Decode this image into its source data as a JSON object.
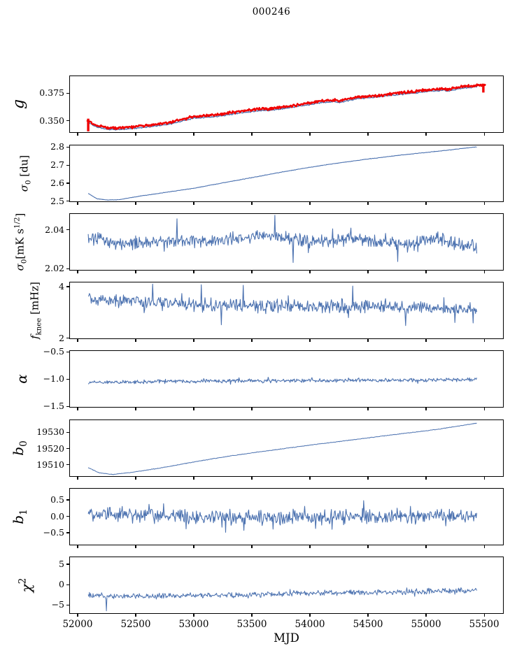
{
  "title": "000246",
  "colors": {
    "line_blue": "#4c72b0",
    "line_red": "#f00000",
    "axis": "#000000",
    "background": "#ffffff"
  },
  "chart_data": {
    "type": "line",
    "title": "000246",
    "xlabel": "MJD",
    "grid": false,
    "legend": null,
    "xlim": [
      51928,
      55668
    ],
    "x_ticks": [
      52000,
      52500,
      53000,
      53500,
      54000,
      54500,
      55000,
      55500
    ],
    "x_tick_labels": [
      "52000",
      "52500",
      "53000",
      "53500",
      "54000",
      "54500",
      "55000",
      "55500"
    ],
    "panels": [
      {
        "id": "g",
        "label": "g",
        "label_parts": [
          [
            "i",
            "g"
          ]
        ],
        "label_fontsize": 22,
        "label_cx": 27,
        "ylim": [
          0.339,
          0.391
        ],
        "yticks": [
          {
            "v": 0.375,
            "t": "0.375"
          },
          {
            "v": 0.35,
            "t": "0.350"
          }
        ],
        "series": [
          {
            "name": "g-model",
            "color": "blue",
            "lw": 1.3,
            "seed": 11,
            "n": 640,
            "noise": 0.0007,
            "spike_prob": 0,
            "spike_mult": 1,
            "x_start": 52085,
            "x_end": 55432,
            "trend": [
              [
                52085,
                0.3492
              ],
              [
                52150,
                0.3452
              ],
              [
                52250,
                0.3428
              ],
              [
                52360,
                0.3426
              ],
              [
                52480,
                0.3438
              ],
              [
                52620,
                0.3452
              ],
              [
                52800,
                0.3478
              ],
              [
                53000,
                0.3532
              ],
              [
                53150,
                0.354
              ],
              [
                53300,
                0.3562
              ],
              [
                53450,
                0.3585
              ],
              [
                53600,
                0.3602
              ],
              [
                53640,
                0.3598
              ],
              [
                53800,
                0.3622
              ],
              [
                53950,
                0.3645
              ],
              [
                54100,
                0.3672
              ],
              [
                54200,
                0.368
              ],
              [
                54250,
                0.3672
              ],
              [
                54400,
                0.3705
              ],
              [
                54550,
                0.3718
              ],
              [
                54700,
                0.3738
              ],
              [
                54850,
                0.3752
              ],
              [
                55000,
                0.3772
              ],
              [
                55150,
                0.3782
              ],
              [
                55180,
                0.3775
              ],
              [
                55300,
                0.38
              ],
              [
                55432,
                0.3815
              ]
            ]
          },
          {
            "name": "g-data",
            "color": "red",
            "lw": 2.4,
            "seed": 12,
            "n": 660,
            "noise": 0.0013,
            "spike_prob": 0.05,
            "spike_mult": 1.6,
            "x_start": 52075,
            "x_end": 55505,
            "trend_from": "g-model",
            "offset": 0.0015,
            "vspikes": [
              [
                52085,
                0.341,
                0.3525
              ],
              [
                55487,
                0.3762,
                0.3832
              ]
            ]
          }
        ]
      },
      {
        "id": "sigma0_du",
        "label": "σ0 [du]",
        "label_parts": [
          [
            "i",
            "σ"
          ],
          [
            "sub",
            "0"
          ],
          [
            "txt",
            " [du]"
          ]
        ],
        "label_fontsize": 15,
        "label_cx": 36,
        "ylim": [
          2.495,
          2.813
        ],
        "yticks": [
          {
            "v": 2.8,
            "t": "2.8"
          },
          {
            "v": 2.7,
            "t": "2.7"
          },
          {
            "v": 2.6,
            "t": "2.6"
          },
          {
            "v": 2.5,
            "t": "2.5"
          }
        ],
        "series": [
          {
            "name": "sigma0-du",
            "color": "blue",
            "lw": 1.1,
            "seed": 21,
            "n": 640,
            "noise": 0.0016,
            "spike_prob": 0.04,
            "spike_mult": 1.6,
            "x_start": 52085,
            "x_end": 55430,
            "trend": [
              [
                52085,
                2.547
              ],
              [
                52160,
                2.517
              ],
              [
                52260,
                2.51
              ],
              [
                52360,
                2.5125
              ],
              [
                52500,
                2.529
              ],
              [
                52750,
                2.5525
              ],
              [
                53000,
                2.576
              ],
              [
                53250,
                2.606
              ],
              [
                53500,
                2.635
              ],
              [
                53750,
                2.665
              ],
              [
                54000,
                2.6925
              ],
              [
                54250,
                2.7165
              ],
              [
                54500,
                2.738
              ],
              [
                54750,
                2.7575
              ],
              [
                55000,
                2.7745
              ],
              [
                55200,
                2.788
              ],
              [
                55430,
                2.8055
              ]
            ]
          }
        ]
      },
      {
        "id": "sigma0_mk",
        "label": "σ0 [mK s^1/2]",
        "label_parts": [
          [
            "i",
            "σ"
          ],
          [
            "sub",
            "0"
          ],
          [
            "txt",
            "[mK s"
          ],
          [
            "sup",
            "1/2"
          ],
          [
            "txt",
            "]"
          ]
        ],
        "label_fontsize": 15,
        "label_cx": 30,
        "ylim": [
          2.019,
          2.0485
        ],
        "yticks": [
          {
            "v": 2.04,
            "t": "2.04"
          },
          {
            "v": 2.02,
            "t": "2.02"
          }
        ],
        "series": [
          {
            "name": "sigma0-mk",
            "color": "blue",
            "lw": 1.1,
            "seed": 31,
            "n": 640,
            "noise": 0.0042,
            "spike_prob": 0.07,
            "spike_mult": 1.8,
            "x_start": 52085,
            "x_end": 55430,
            "trend": [
              [
                52085,
                2.036
              ],
              [
                52400,
                2.0335
              ],
              [
                52800,
                2.035
              ],
              [
                53200,
                2.0345
              ],
              [
                53680,
                2.0375
              ],
              [
                54000,
                2.034
              ],
              [
                54400,
                2.0355
              ],
              [
                54800,
                2.033
              ],
              [
                55100,
                2.0355
              ],
              [
                55430,
                2.031
              ]
            ],
            "spikes": [
              [
                52850,
                2.046
              ],
              [
                53690,
                2.0478
              ],
              [
                53850,
                2.0235
              ],
              [
                54750,
                2.024
              ]
            ]
          }
        ]
      },
      {
        "id": "f_knee",
        "label": "f_knee [mHz]",
        "label_parts": [
          [
            "i",
            "f"
          ],
          [
            "sub",
            "knee"
          ],
          [
            "txt",
            " [mHz]"
          ]
        ],
        "label_fontsize": 15,
        "label_cx": 51,
        "ylim": [
          1.97,
          4.19
        ],
        "yticks": [
          {
            "v": 4,
            "t": "4"
          },
          {
            "v": 2,
            "t": "2"
          }
        ],
        "series": [
          {
            "name": "f-knee",
            "color": "blue",
            "lw": 1.1,
            "seed": 41,
            "n": 640,
            "noise": 0.3,
            "spike_prob": 0.09,
            "spike_mult": 2.0,
            "x_start": 52085,
            "x_end": 55430,
            "trend": [
              [
                52085,
                3.55
              ],
              [
                52450,
                3.48
              ],
              [
                52700,
                3.38
              ],
              [
                53000,
                3.32
              ],
              [
                53500,
                3.28
              ],
              [
                54000,
                3.26
              ],
              [
                54500,
                3.27
              ],
              [
                55000,
                3.22
              ],
              [
                55430,
                3.12
              ]
            ],
            "spikes": [
              [
                52640,
                4.13
              ],
              [
                53060,
                4.1
              ],
              [
                53420,
                4.08
              ],
              [
                54360,
                4.05
              ],
              [
                53230,
                2.55
              ],
              [
                54820,
                2.52
              ],
              [
                55400,
                2.62
              ]
            ]
          }
        ]
      },
      {
        "id": "alpha",
        "label": "α",
        "label_parts": [
          [
            "i",
            "α"
          ]
        ],
        "label_fontsize": 20,
        "label_cx": 31,
        "ylim": [
          -1.52,
          -0.47
        ],
        "yticks": [
          {
            "v": -0.5,
            "t": "−0.5"
          },
          {
            "v": -1.0,
            "t": "−1.0"
          },
          {
            "v": -1.5,
            "t": "−1.5"
          }
        ],
        "series": [
          {
            "name": "alpha",
            "color": "blue",
            "lw": 1.1,
            "seed": 51,
            "n": 640,
            "noise": 0.038,
            "spike_prob": 0.07,
            "spike_mult": 1.9,
            "x_start": 52085,
            "x_end": 55430,
            "trend": [
              [
                52085,
                -1.045
              ],
              [
                52800,
                -1.025
              ],
              [
                53800,
                -1.015
              ],
              [
                54800,
                -1.005
              ],
              [
                55430,
                -0.995
              ]
            ]
          }
        ]
      },
      {
        "id": "b0",
        "label": "b0",
        "label_parts": [
          [
            "i",
            "b"
          ],
          [
            "sub",
            "0"
          ]
        ],
        "label_fontsize": 20,
        "label_cx": 28,
        "ylim": [
          19502.5,
          19538
        ],
        "yticks": [
          {
            "v": 19530,
            "t": "19530"
          },
          {
            "v": 19520,
            "t": "19520"
          },
          {
            "v": 19510,
            "t": "19510"
          }
        ],
        "series": [
          {
            "name": "b0",
            "color": "blue",
            "lw": 1.0,
            "seed": 61,
            "n": 640,
            "noise": 0.22,
            "spike_prob": 0.03,
            "spike_mult": 1.5,
            "x_start": 52085,
            "x_end": 55430,
            "trend": [
              [
                52085,
                19508.6
              ],
              [
                52180,
                19505.4
              ],
              [
                52300,
                19504.4
              ],
              [
                52450,
                19505.6
              ],
              [
                52700,
                19508.3
              ],
              [
                53000,
                19512.2
              ],
              [
                53300,
                19515.8
              ],
              [
                53600,
                19518.8
              ],
              [
                54000,
                19522.6
              ],
              [
                54400,
                19526.2
              ],
              [
                54800,
                19529.8
              ],
              [
                55100,
                19532.4
              ],
              [
                55430,
                19536.2
              ]
            ]
          }
        ]
      },
      {
        "id": "b1",
        "label": "b1",
        "label_parts": [
          [
            "i",
            "b"
          ],
          [
            "sub",
            "1"
          ]
        ],
        "label_fontsize": 20,
        "label_cx": 28,
        "ylim": [
          -0.88,
          0.86
        ],
        "yticks": [
          {
            "v": 0.5,
            "t": "0.5"
          },
          {
            "v": 0.0,
            "t": "0.0"
          },
          {
            "v": -0.5,
            "t": "−0.5"
          }
        ],
        "series": [
          {
            "name": "b1",
            "color": "blue",
            "lw": 1.1,
            "seed": 71,
            "n": 640,
            "noise": 0.26,
            "spike_prob": 0.09,
            "spike_mult": 2.0,
            "x_start": 52085,
            "x_end": 55430,
            "trend": [
              [
                52085,
                0.12
              ],
              [
                52500,
                0.05
              ],
              [
                53200,
                0.0
              ],
              [
                54200,
                0.01
              ],
              [
                55430,
                0.04
              ]
            ]
          }
        ]
      },
      {
        "id": "chi2",
        "label": "χ2",
        "label_parts": [
          [
            "i",
            "χ"
          ],
          [
            "sup",
            "2"
          ]
        ],
        "label_fontsize": 20,
        "label_cx": 37,
        "ylim": [
          -7.2,
          6.9
        ],
        "yticks": [
          {
            "v": 5,
            "t": "5"
          },
          {
            "v": 0,
            "t": "0"
          },
          {
            "v": -5,
            "t": "−5"
          }
        ],
        "series": [
          {
            "name": "chi2",
            "color": "blue",
            "lw": 1.0,
            "seed": 81,
            "n": 640,
            "noise": 0.8,
            "spike_prob": 0.06,
            "spike_mult": 1.8,
            "x_start": 52085,
            "x_end": 55430,
            "trend": [
              [
                52085,
                -2.4
              ],
              [
                52450,
                -2.75
              ],
              [
                53000,
                -2.55
              ],
              [
                53600,
                -2.2
              ],
              [
                54200,
                -1.85
              ],
              [
                54800,
                -1.65
              ],
              [
                55430,
                -1.25
              ]
            ],
            "spikes": [
              [
                52240,
                -6.3
              ]
            ]
          }
        ]
      }
    ]
  }
}
